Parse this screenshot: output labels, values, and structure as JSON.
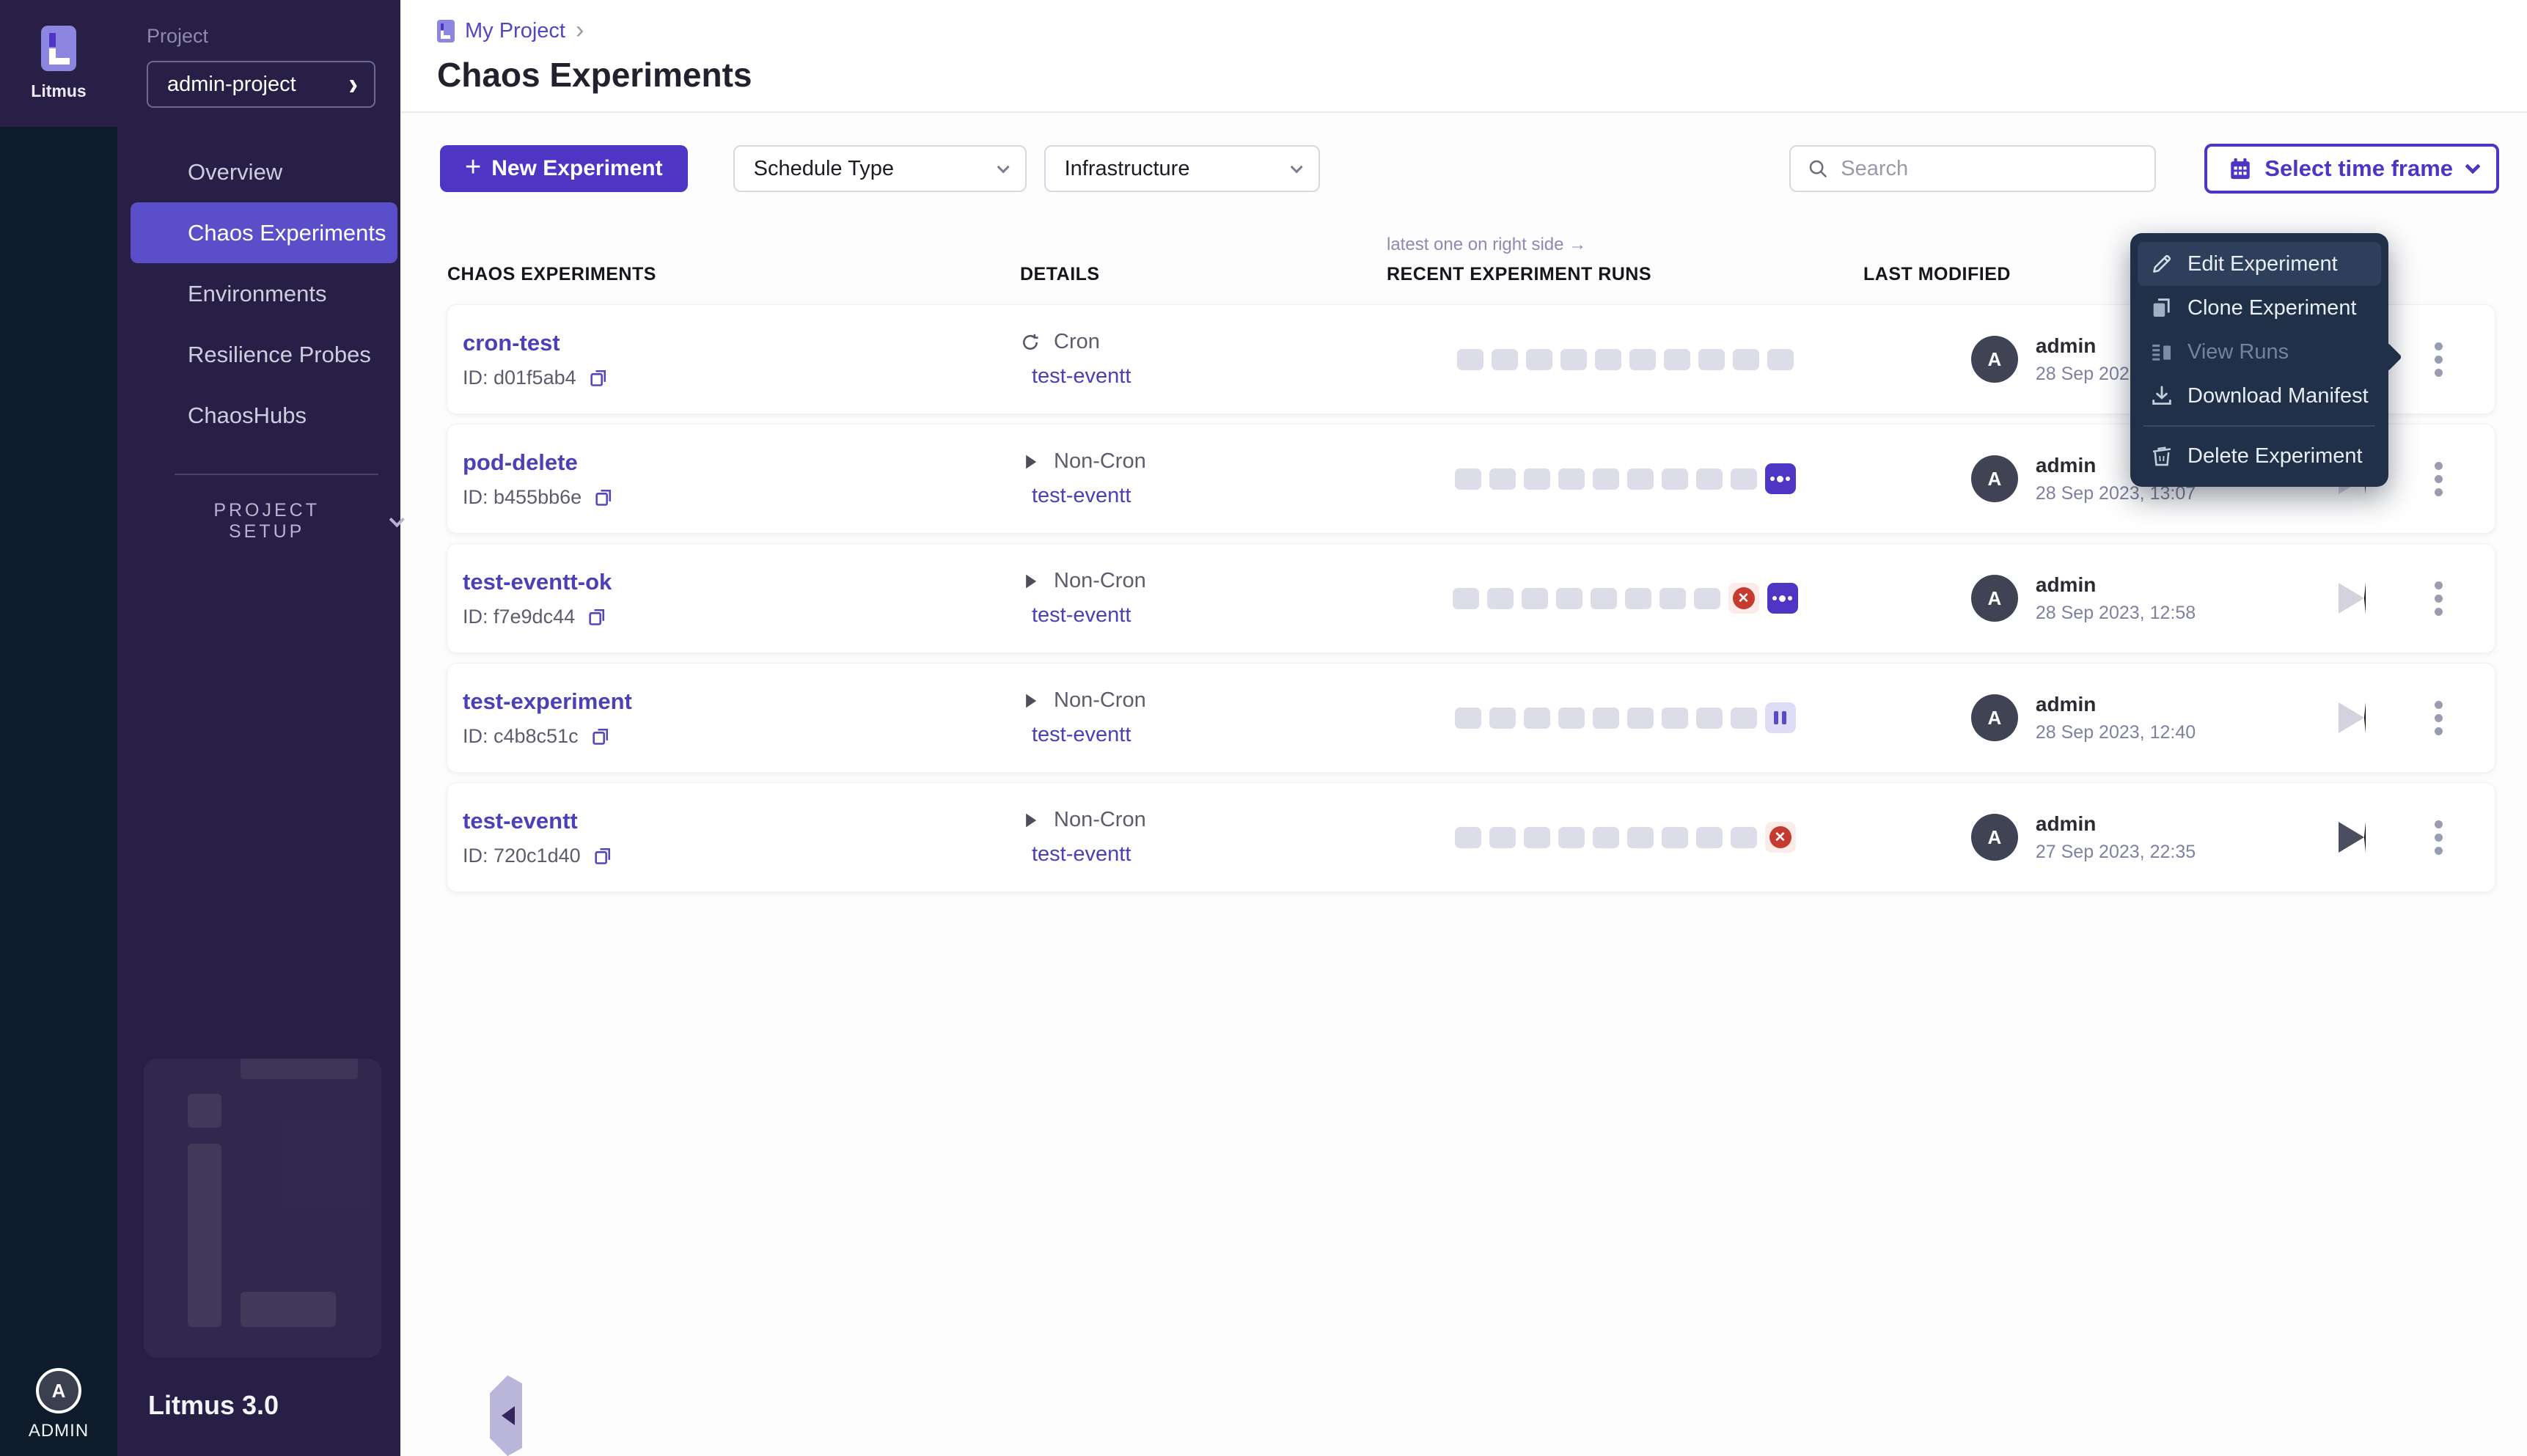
{
  "colors": {
    "accent": "#4f35c4",
    "sidebar_bg": "#281f46",
    "rail_bg": "#0d1b2a",
    "menu_bg": "#1f3048",
    "error_red": "#c53b30",
    "run_cell_gray": "#dcdde8"
  },
  "sidebar": {
    "brand": {
      "name": "Litmus",
      "version": "Litmus 3.0"
    },
    "project_label": "Project",
    "project_name": "admin-project",
    "nav": [
      {
        "label": "Overview",
        "active": false
      },
      {
        "label": "Chaos Experiments",
        "active": true
      },
      {
        "label": "Environments",
        "active": false
      },
      {
        "label": "Resilience Probes",
        "active": false
      },
      {
        "label": "ChaosHubs",
        "active": false
      }
    ],
    "section_label": "PROJECT SETUP",
    "user": {
      "avatar_letter": "A",
      "label": "ADMIN"
    }
  },
  "header": {
    "breadcrumb": "My Project",
    "breadcrumb_separator": "›",
    "title": "Chaos Experiments"
  },
  "toolbar": {
    "plus": "+",
    "new_experiment_label": "New Experiment",
    "schedule_type_label": "Schedule Type",
    "infrastructure_label": "Infrastructure",
    "search_placeholder": "Search",
    "time_frame_label": "Select time frame"
  },
  "table": {
    "runs_hint": "latest one on right side →",
    "columns": [
      "CHAOS EXPERIMENTS",
      "DETAILS",
      "RECENT EXPERIMENT RUNS",
      "LAST MODIFIED"
    ],
    "rows": [
      {
        "name": "cron-test",
        "id": "ID: d01f5ab4",
        "schedule": "Cron",
        "schedule_icon": "cron-icon",
        "infrastructure": "test-eventt",
        "runs": [
          "empty",
          "empty",
          "empty",
          "empty",
          "empty",
          "empty",
          "empty",
          "empty",
          "empty",
          "empty"
        ],
        "avatar_letter": "A",
        "modified_by": "admin",
        "modified_at": "28 Sep 2023, 13:20",
        "play_state": "disabled"
      },
      {
        "name": "pod-delete",
        "id": "ID: b455bb6e",
        "schedule": "Non-Cron",
        "schedule_icon": "play-icon",
        "infrastructure": "test-eventt",
        "runs": [
          "empty",
          "empty",
          "empty",
          "empty",
          "empty",
          "empty",
          "empty",
          "empty",
          "empty",
          "running"
        ],
        "avatar_letter": "A",
        "modified_by": "admin",
        "modified_at": "28 Sep 2023, 13:07",
        "play_state": "disabled"
      },
      {
        "name": "test-eventt-ok",
        "id": "ID: f7e9dc44",
        "schedule": "Non-Cron",
        "schedule_icon": "play-icon",
        "infrastructure": "test-eventt",
        "runs": [
          "empty",
          "empty",
          "empty",
          "empty",
          "empty",
          "empty",
          "empty",
          "empty",
          "failed",
          "running"
        ],
        "avatar_letter": "A",
        "modified_by": "admin",
        "modified_at": "28 Sep 2023, 12:58",
        "play_state": "disabled"
      },
      {
        "name": "test-experiment",
        "id": "ID: c4b8c51c",
        "schedule": "Non-Cron",
        "schedule_icon": "play-icon",
        "infrastructure": "test-eventt",
        "runs": [
          "empty",
          "empty",
          "empty",
          "empty",
          "empty",
          "empty",
          "empty",
          "empty",
          "empty",
          "paused"
        ],
        "avatar_letter": "A",
        "modified_by": "admin",
        "modified_at": "28 Sep 2023, 12:40",
        "play_state": "disabled"
      },
      {
        "name": "test-eventt",
        "id": "ID: 720c1d40",
        "schedule": "Non-Cron",
        "schedule_icon": "play-icon",
        "infrastructure": "test-eventt",
        "runs": [
          "empty",
          "empty",
          "empty",
          "empty",
          "empty",
          "empty",
          "empty",
          "empty",
          "empty",
          "failed"
        ],
        "avatar_letter": "A",
        "modified_by": "admin",
        "modified_at": "27 Sep 2023, 22:35",
        "play_state": "enabled"
      }
    ]
  },
  "context_menu": {
    "items": [
      {
        "label": "Edit Experiment",
        "icon": "pencil-icon",
        "highlighted": true,
        "disabled": false,
        "divider_after": false
      },
      {
        "label": "Clone Experiment",
        "icon": "clone-icon",
        "highlighted": false,
        "disabled": false,
        "divider_after": false
      },
      {
        "label": "View Runs",
        "icon": "view-runs-icon",
        "highlighted": false,
        "disabled": true,
        "divider_after": false
      },
      {
        "label": "Download Manifest",
        "icon": "download-icon",
        "highlighted": false,
        "disabled": false,
        "divider_after": true
      },
      {
        "label": "Delete Experiment",
        "icon": "trash-icon",
        "highlighted": false,
        "disabled": false,
        "divider_after": false
      }
    ]
  }
}
